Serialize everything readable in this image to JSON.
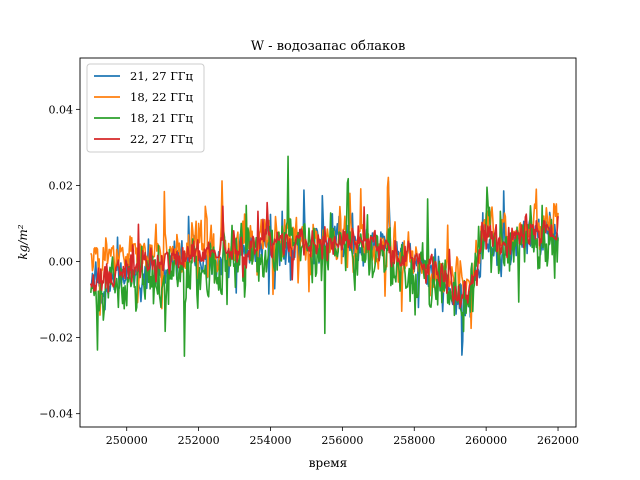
{
  "chart_data": {
    "type": "line",
    "title": "W - водозапас облаков",
    "xlabel": "время",
    "ylabel": "kg/m²",
    "xlim": [
      248700,
      262500
    ],
    "ylim": [
      -0.0435,
      0.0535
    ],
    "xticks": [
      250000,
      252000,
      254000,
      256000,
      258000,
      260000,
      262000
    ],
    "xtick_labels": [
      "250000",
      "252000",
      "254000",
      "256000",
      "258000",
      "260000",
      "262000"
    ],
    "yticks": [
      -0.04,
      -0.02,
      0.0,
      0.02,
      0.04
    ],
    "ytick_labels": [
      "−0.04",
      "−0.02",
      "0.00",
      "0.02",
      "0.04"
    ],
    "grid": false,
    "legend_position": "upper-left",
    "x_range": [
      249000,
      262000
    ],
    "num_points": 560,
    "series": [
      {
        "name": "21, 27 ГГц",
        "color": "#1f77b4",
        "trend_x": [
          249000,
          250000,
          251000,
          252000,
          253000,
          254000,
          255000,
          256000,
          257000,
          258000,
          258500,
          259000,
          259500,
          260000,
          260500,
          261000,
          262000
        ],
        "trend_y": [
          -0.006,
          -0.005,
          -0.002,
          0.001,
          0.002,
          0.003,
          0.005,
          0.005,
          0.004,
          0.0,
          -0.003,
          -0.006,
          -0.01,
          0.006,
          0.002,
          0.006,
          0.008
        ],
        "noise": 0.0085
      },
      {
        "name": "18, 22 ГГц",
        "color": "#ff7f0e",
        "trend_x": [
          249000,
          250000,
          251000,
          252000,
          253000,
          254000,
          255000,
          256000,
          257000,
          258000,
          258500,
          259000,
          259500,
          260000,
          260500,
          261000,
          262000
        ],
        "trend_y": [
          0.0,
          0.004,
          0.004,
          0.004,
          0.005,
          0.006,
          0.005,
          0.006,
          0.004,
          0.0,
          -0.003,
          -0.003,
          -0.008,
          0.012,
          0.008,
          0.008,
          0.01
        ],
        "noise": 0.009
      },
      {
        "name": "18, 21 ГГц",
        "color": "#2ca02c",
        "trend_x": [
          249000,
          250000,
          251000,
          252000,
          253000,
          254000,
          255000,
          256000,
          257000,
          258000,
          258500,
          259000,
          259500,
          260000,
          260500,
          261000,
          262000
        ],
        "trend_y": [
          -0.008,
          -0.006,
          -0.004,
          -0.001,
          0.001,
          0.003,
          0.004,
          0.002,
          0.001,
          -0.002,
          -0.006,
          -0.008,
          -0.01,
          0.008,
          0.003,
          0.006,
          0.006
        ],
        "noise": 0.013
      },
      {
        "name": "22, 27 ГГц",
        "color": "#d62728",
        "trend_x": [
          249000,
          250000,
          251000,
          252000,
          253000,
          254000,
          255000,
          256000,
          257000,
          258000,
          258500,
          259000,
          259500,
          260000,
          260500,
          261000,
          262000
        ],
        "trend_y": [
          -0.004,
          -0.003,
          0.0,
          0.002,
          0.003,
          0.004,
          0.005,
          0.005,
          0.004,
          0.0,
          -0.003,
          -0.005,
          -0.01,
          0.008,
          0.004,
          0.007,
          0.008
        ],
        "noise": 0.0065
      }
    ]
  }
}
